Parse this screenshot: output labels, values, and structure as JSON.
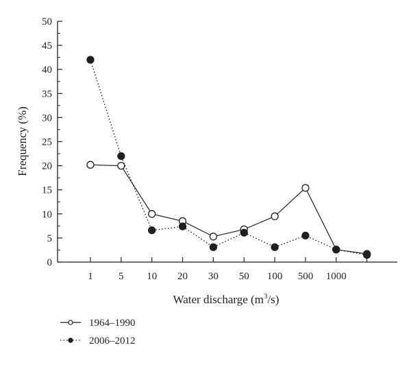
{
  "chart_data": {
    "type": "line",
    "categories": [
      "1",
      "5",
      "10",
      "20",
      "30",
      "50",
      "100",
      "500",
      "1000",
      ""
    ],
    "xlabel": "Water discharge (m",
    "xlabel_sup": "3",
    "xlabel_end": "/s)",
    "ylabel": "Frequency (%)",
    "ylim": [
      0,
      50
    ],
    "yticks": [
      0,
      5,
      10,
      15,
      20,
      25,
      30,
      35,
      40,
      45,
      50
    ],
    "grid": false,
    "legend_position": "bottom-left",
    "series": [
      {
        "name": "1964–1990",
        "marker": "open-circle",
        "line": "solid",
        "values": [
          20.2,
          20.0,
          10.0,
          8.5,
          5.3,
          6.8,
          9.5,
          15.4,
          2.6,
          1.7
        ]
      },
      {
        "name": "2006–2012",
        "marker": "filled-circle",
        "line": "dotted",
        "values": [
          42.0,
          22.0,
          6.6,
          7.4,
          3.1,
          6.1,
          3.1,
          5.5,
          2.6,
          1.5
        ]
      }
    ],
    "colors": {
      "ink": "#231f20",
      "background": "#ffffff"
    }
  }
}
